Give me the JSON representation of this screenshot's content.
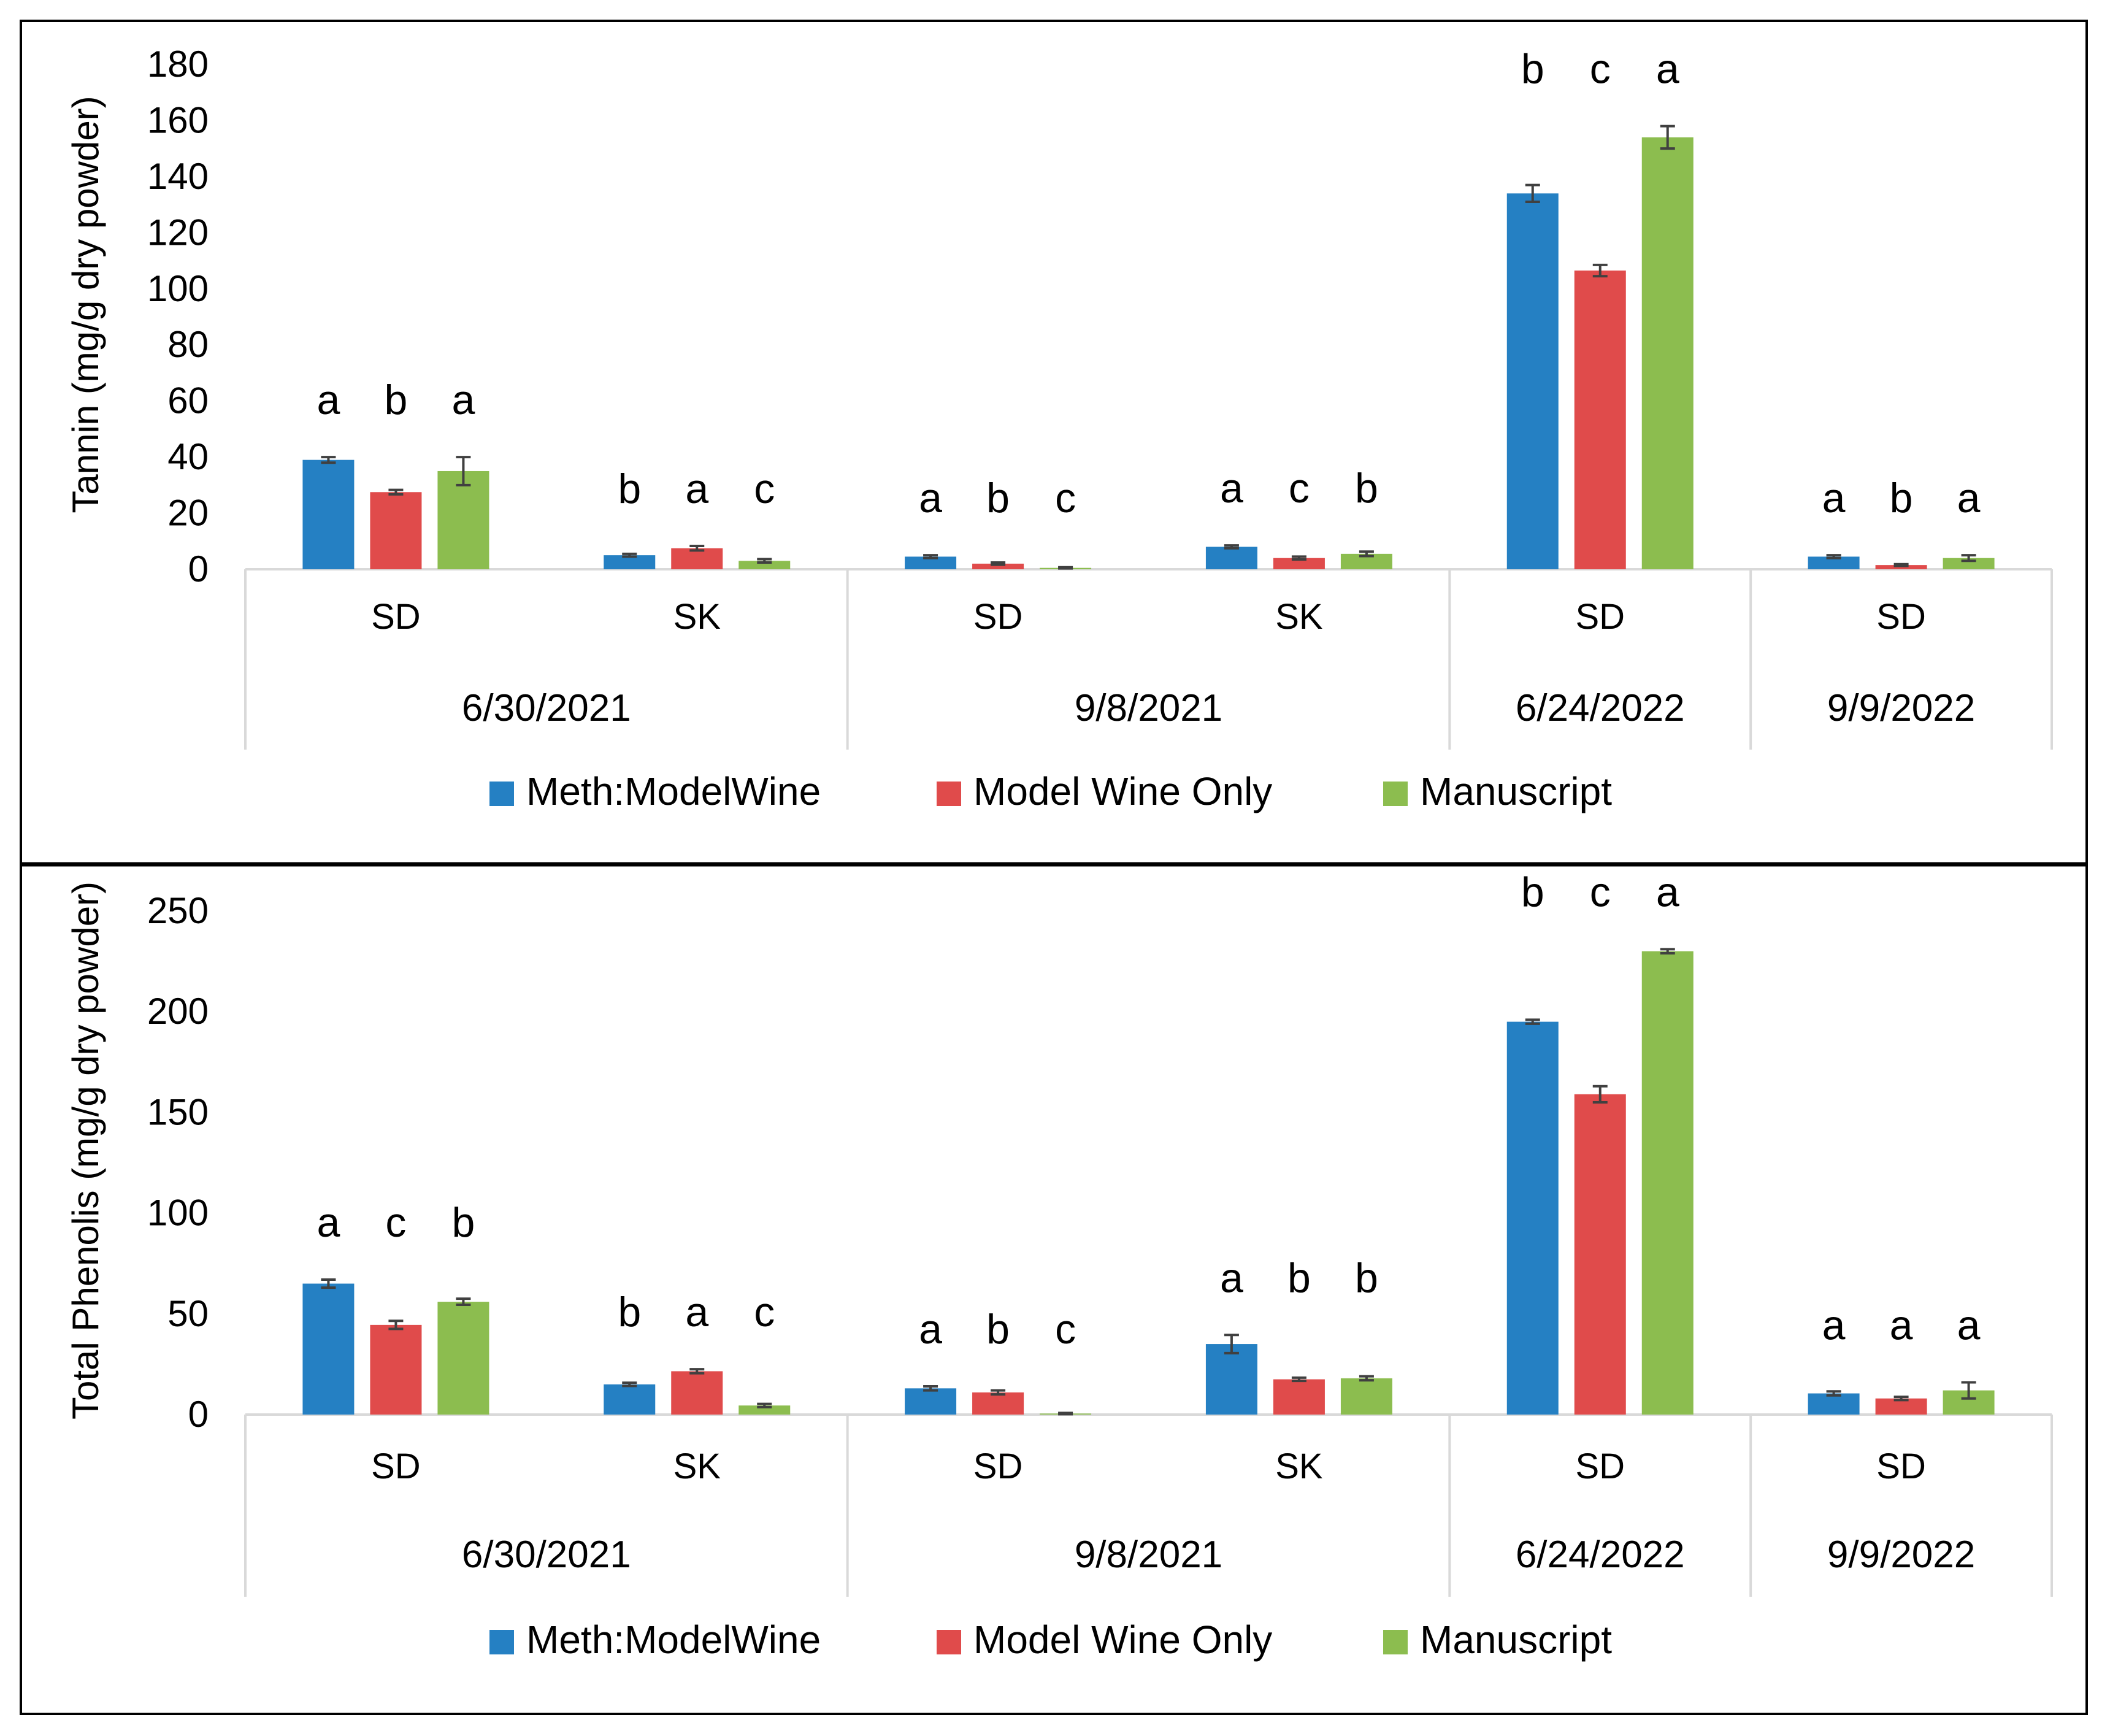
{
  "colors": {
    "meth": "#2580c3",
    "model": "#e04b4b",
    "manuscript": "#8cbd4f",
    "error": "#404040",
    "axis": "#d9d9d9",
    "frame": "#000000"
  },
  "legend": [
    "Meth:ModelWine",
    "Model Wine Only",
    "Manuscript"
  ],
  "chart_data": [
    {
      "type": "bar",
      "ylabel": "Tannin (mg/g dry powder)",
      "ylim": [
        0,
        180
      ],
      "yticks": [
        0,
        20,
        40,
        60,
        80,
        100,
        120,
        140,
        160,
        180
      ],
      "legend_position": "bottom",
      "groups": [
        "6/30/2021",
        "9/8/2021",
        "6/24/2022",
        "9/9/2022"
      ],
      "categories": [
        {
          "label": "SD",
          "group": "6/30/2021"
        },
        {
          "label": "SK",
          "group": "6/30/2021"
        },
        {
          "label": "SD",
          "group": "9/8/2021"
        },
        {
          "label": "SK",
          "group": "9/8/2021"
        },
        {
          "label": "SD",
          "group": "6/24/2022"
        },
        {
          "label": "SD",
          "group": "9/9/2022"
        }
      ],
      "series": [
        {
          "name": "Meth:ModelWine",
          "values": [
            39,
            5,
            4.5,
            8,
            134,
            4.5
          ],
          "errors": [
            1,
            0.5,
            0.5,
            0.5,
            3,
            0.5
          ]
        },
        {
          "name": "Model Wine Only",
          "values": [
            27.5,
            7.5,
            2,
            4,
            106.5,
            1.5
          ],
          "errors": [
            0.8,
            0.8,
            0.4,
            0.5,
            2,
            0.3
          ]
        },
        {
          "name": "Manuscript",
          "values": [
            35,
            3,
            0.5,
            5.5,
            154,
            4
          ],
          "errors": [
            5,
            0.6,
            0.2,
            0.8,
            4,
            1
          ]
        }
      ],
      "letters": [
        [
          "a",
          "b",
          "a"
        ],
        [
          "b",
          "a",
          "c"
        ],
        [
          "a",
          "b",
          "c"
        ],
        [
          "a",
          "c",
          "b"
        ],
        [
          "b",
          "c",
          "a"
        ],
        [
          "a",
          "b",
          "a"
        ]
      ]
    },
    {
      "type": "bar",
      "ylabel": "Total Phenolis (mg/g dry powder)",
      "ylim": [
        0,
        250
      ],
      "yticks": [
        0,
        50,
        100,
        150,
        200,
        250
      ],
      "legend_position": "bottom",
      "groups": [
        "6/30/2021",
        "9/8/2021",
        "6/24/2022",
        "9/9/2022"
      ],
      "categories": [
        {
          "label": "SD",
          "group": "6/30/2021"
        },
        {
          "label": "SK",
          "group": "6/30/2021"
        },
        {
          "label": "SD",
          "group": "9/8/2021"
        },
        {
          "label": "SK",
          "group": "9/8/2021"
        },
        {
          "label": "SD",
          "group": "6/24/2022"
        },
        {
          "label": "SD",
          "group": "9/9/2022"
        }
      ],
      "series": [
        {
          "name": "Meth:ModelWine",
          "values": [
            65,
            15,
            13,
            35,
            195,
            10.5
          ],
          "errors": [
            2,
            0.8,
            1,
            4.5,
            1,
            1
          ]
        },
        {
          "name": "Model Wine Only",
          "values": [
            44.5,
            21.5,
            11,
            17.5,
            159,
            8
          ],
          "errors": [
            2,
            1,
            1,
            0.8,
            4,
            0.8
          ]
        },
        {
          "name": "Manuscript",
          "values": [
            56,
            4.5,
            0.5,
            18,
            230,
            12
          ],
          "errors": [
            1.5,
            0.8,
            0.3,
            1,
            1,
            4
          ]
        }
      ],
      "letters": [
        [
          "a",
          "c",
          "b"
        ],
        [
          "b",
          "a",
          "c"
        ],
        [
          "a",
          "b",
          "c"
        ],
        [
          "a",
          "b",
          "b"
        ],
        [
          "b",
          "c",
          "a"
        ],
        [
          "a",
          "a",
          "a"
        ]
      ]
    }
  ]
}
